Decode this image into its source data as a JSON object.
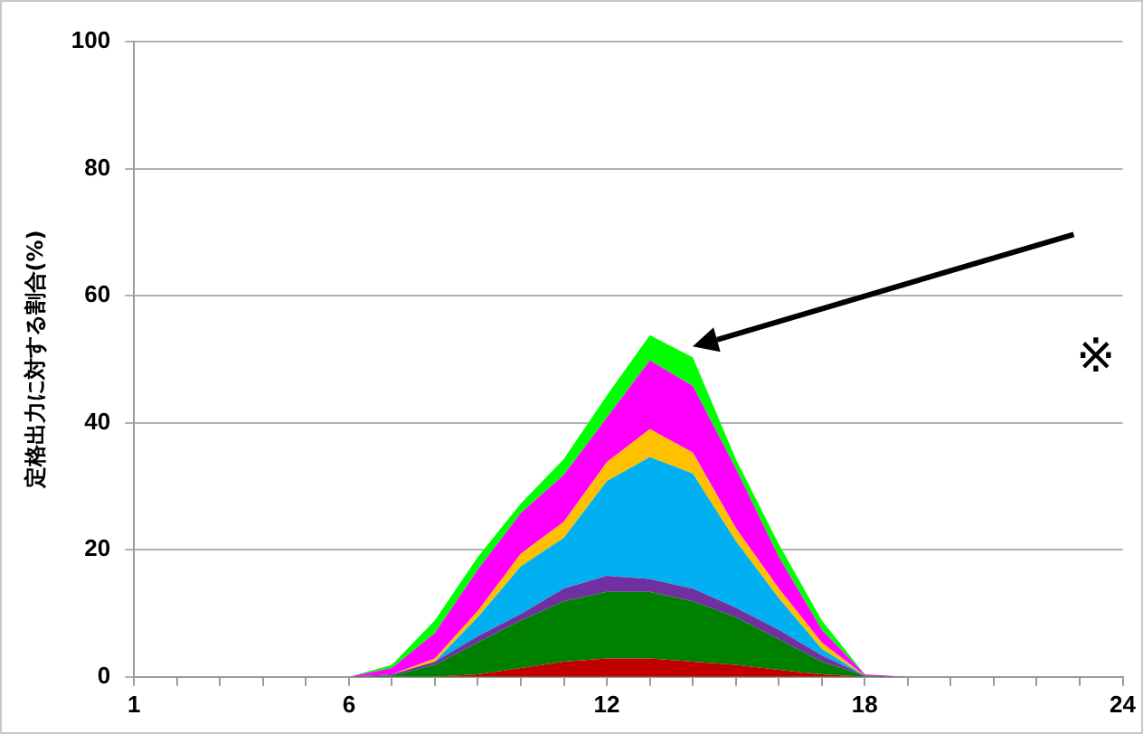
{
  "chart_data": {
    "type": "area",
    "stacked": true,
    "ylabel": "定格出力に対する割合(%)",
    "x": [
      1,
      2,
      3,
      4,
      5,
      6,
      7,
      8,
      9,
      10,
      11,
      12,
      13,
      14,
      15,
      16,
      17,
      18,
      19,
      20,
      21,
      22,
      23,
      24
    ],
    "xlim": [
      1,
      24
    ],
    "xticks": [
      1,
      {
        "value": 2,
        "label": null
      },
      {
        "value": 3,
        "label": null
      },
      {
        "value": 4,
        "label": null
      },
      {
        "value": 5,
        "label": null
      },
      6,
      {
        "value": 7,
        "label": null
      },
      {
        "value": 8,
        "label": null
      },
      {
        "value": 9,
        "label": null
      },
      {
        "value": 10,
        "label": null
      },
      {
        "value": 11,
        "label": null
      },
      12,
      {
        "value": 13,
        "label": null
      },
      {
        "value": 14,
        "label": null
      },
      {
        "value": 15,
        "label": null
      },
      {
        "value": 16,
        "label": null
      },
      {
        "value": 17,
        "label": null
      },
      18,
      {
        "value": 19,
        "label": null
      },
      {
        "value": 20,
        "label": null
      },
      {
        "value": 21,
        "label": null
      },
      {
        "value": 22,
        "label": null
      },
      {
        "value": 23,
        "label": null
      },
      24
    ],
    "ylim": [
      0,
      100
    ],
    "yticks": [
      0,
      20,
      40,
      60,
      80,
      100
    ],
    "grid": "y",
    "legend": false,
    "marker": "none",
    "series": [
      {
        "color": "#c00000",
        "values": [
          0,
          0,
          0,
          0,
          0,
          0,
          0,
          0,
          0.4,
          1.4,
          2.4,
          2.9,
          2.9,
          2.4,
          1.9,
          1.1,
          0.4,
          0,
          0,
          0,
          0,
          0,
          0,
          0
        ]
      },
      {
        "color": "#008000",
        "values": [
          0,
          0,
          0,
          0,
          0,
          0,
          0.2,
          1.9,
          5,
          7.5,
          9.5,
          10.5,
          10.5,
          9.5,
          7.5,
          4.8,
          2,
          0.2,
          0,
          0,
          0,
          0,
          0,
          0
        ]
      },
      {
        "color": "#7030a0",
        "values": [
          0,
          0,
          0,
          0,
          0,
          0,
          0.2,
          0.5,
          1,
          1,
          2,
          2.5,
          2,
          2,
          1.5,
          1.5,
          1,
          0,
          0,
          0,
          0,
          0,
          0,
          0
        ]
      },
      {
        "color": "#00b0f0",
        "values": [
          0,
          0,
          0,
          0,
          0,
          0,
          0,
          0,
          3,
          7.5,
          8,
          14.9,
          19.2,
          18.1,
          10.5,
          5,
          1,
          0,
          0,
          0,
          0,
          0,
          0,
          0
        ]
      },
      {
        "color": "#ffc000",
        "values": [
          0,
          0,
          0,
          0,
          0,
          0,
          0,
          0.5,
          1,
          2,
          2.5,
          3,
          4.4,
          3.3,
          2,
          1.5,
          1,
          0,
          0,
          0,
          0,
          0,
          0,
          0
        ]
      },
      {
        "color": "#ff00ff",
        "values": [
          0,
          0,
          0,
          0,
          0,
          0,
          1,
          4,
          6.5,
          6.4,
          7.4,
          7,
          10.8,
          10.5,
          9.4,
          5,
          2,
          0.2,
          0,
          0,
          0,
          0,
          0,
          0
        ]
      },
      {
        "color": "#00ff00",
        "values": [
          0,
          0,
          0,
          0,
          0,
          0,
          0.5,
          2,
          2,
          1.5,
          2.5,
          3.5,
          4,
          4.5,
          1.5,
          2,
          1.5,
          0,
          0,
          0,
          0,
          0,
          0,
          0
        ]
      }
    ],
    "annotations": [
      "※"
    ]
  }
}
